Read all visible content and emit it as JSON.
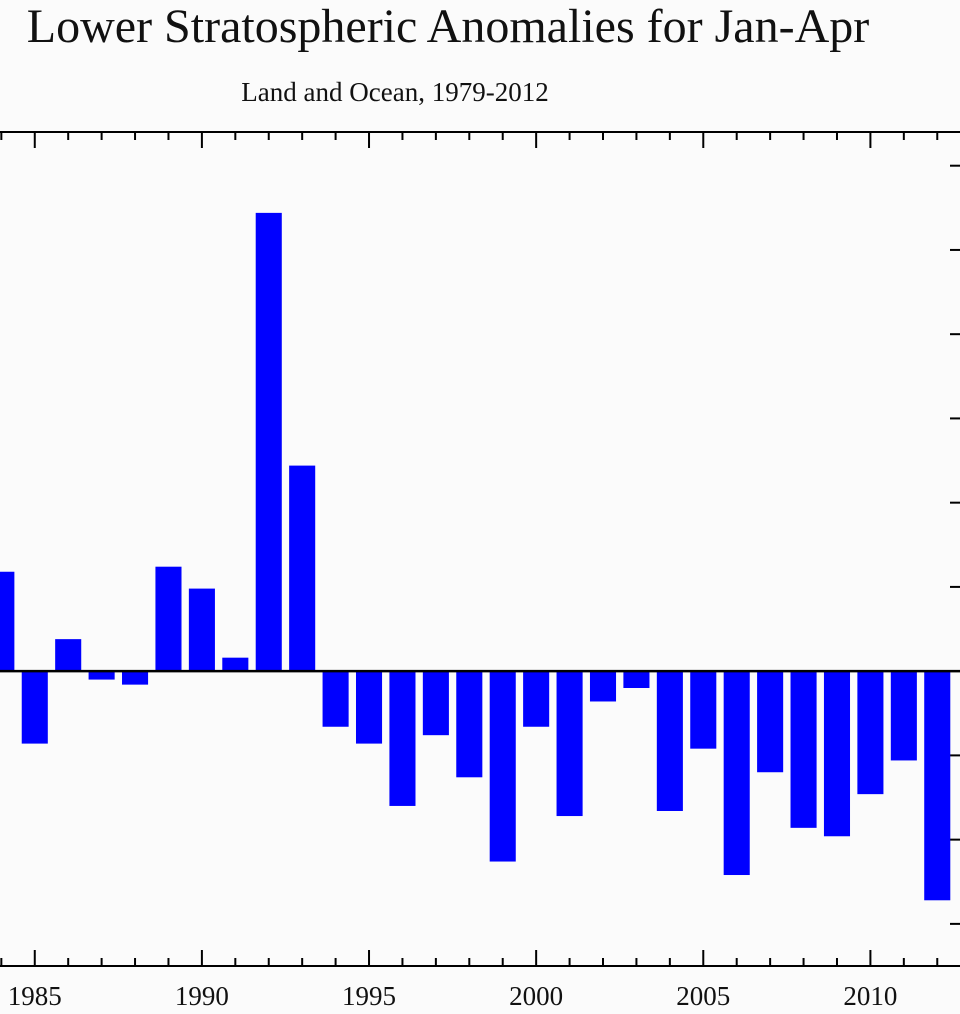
{
  "chart_data": {
    "type": "bar",
    "title": "Lower Stratospheric Anomalies for Jan-Apr",
    "subtitle": "Land and Ocean, 1979-2012",
    "xlabel": "",
    "ylabel": "",
    "x_tick_labels": [
      "1985",
      "1990",
      "1995",
      "2000",
      "2005",
      "2010"
    ],
    "x_ticks": [
      1985,
      1990,
      1995,
      2000,
      2005,
      2010
    ],
    "y_ticks": [
      -1.5,
      -1.0,
      -0.5,
      0,
      0.5,
      1.0,
      1.5,
      2.0,
      2.5,
      3.0
    ],
    "xlim": [
      1983.9,
      2012.8
    ],
    "ylim": [
      -1.75,
      3.2
    ],
    "bar_color": "#0000ff",
    "background_color": "#fbfbfb",
    "categories": [
      1984,
      1985,
      1986,
      1987,
      1988,
      1989,
      1990,
      1991,
      1992,
      1993,
      1994,
      1995,
      1996,
      1997,
      1998,
      1999,
      2000,
      2001,
      2002,
      2003,
      2004,
      2005,
      2006,
      2007,
      2008,
      2009,
      2010,
      2011,
      2012
    ],
    "values": [
      0.59,
      -0.43,
      0.19,
      -0.05,
      -0.08,
      0.62,
      0.49,
      0.08,
      2.72,
      1.22,
      -0.33,
      -0.43,
      -0.8,
      -0.38,
      -0.63,
      -1.13,
      -0.33,
      -0.86,
      -0.18,
      -0.1,
      -0.83,
      -0.46,
      -1.21,
      -0.6,
      -0.93,
      -0.98,
      -0.73,
      -0.53,
      -1.36
    ]
  }
}
